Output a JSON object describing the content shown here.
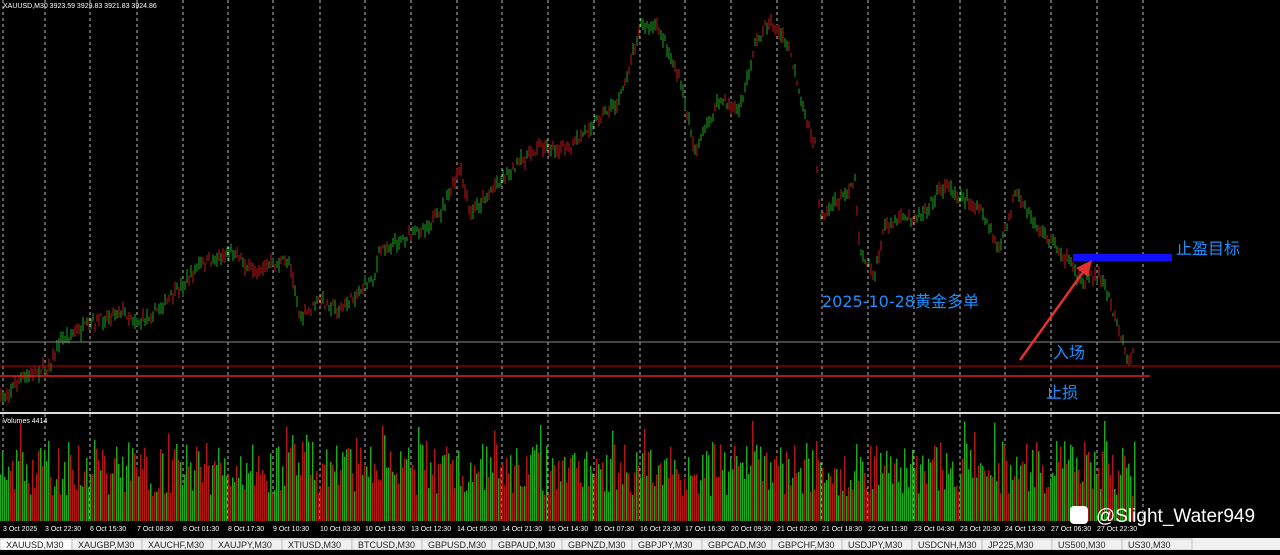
{
  "header": {
    "symbol_info": "XAUUSD,M30  3923.59 3929.83 3921.83 3924.86",
    "volumes": "Volumes 4414"
  },
  "x_axis_labels": [
    "3 Oct 2025",
    "3 Oct 22:30",
    "6 Oct 15:30",
    "7 Oct 08:30",
    "8 Oct 01:30",
    "8 Oct 17:30",
    "9 Oct 10:30",
    "10 Oct 03:30",
    "10 Oct 19:30",
    "13 Oct 12:30",
    "14 Oct 05:30",
    "14 Oct 21:30",
    "15 Oct 14:30",
    "16 Oct 07:30",
    "16 Oct 23:30",
    "17 Oct 16:30",
    "20 Oct 09:30",
    "21 Oct 02:30",
    "21 Oct 18:30",
    "22 Oct 11:30",
    "23 Oct 04:30",
    "23 Oct 20:30",
    "24 Oct 13:30",
    "27 Oct 06:30",
    "27 Oct 22:30"
  ],
  "annotations": {
    "take_profit": "止盈目标",
    "title": "2025-10-28黄金多单",
    "entry": "入场",
    "stop_loss": "止损"
  },
  "watermark": "@Slight_Water949",
  "tabs": [
    "XAUUSD,M30",
    "XAUGBP,M30",
    "XAUCHF,M30",
    "XAUJPY,M30",
    "XTIUSD,M30",
    "BTCUSD,M30",
    "GBPUSD,M30",
    "GBPAUD,M30",
    "GBPNZD,M30",
    "GBPJPY,M30",
    "GBPCAD,M30",
    "GBPCHF,M30",
    "USDJPY,M30",
    "USDCNH,M30",
    "JP225,M30",
    "US500,M30",
    "US30,M30"
  ]
}
